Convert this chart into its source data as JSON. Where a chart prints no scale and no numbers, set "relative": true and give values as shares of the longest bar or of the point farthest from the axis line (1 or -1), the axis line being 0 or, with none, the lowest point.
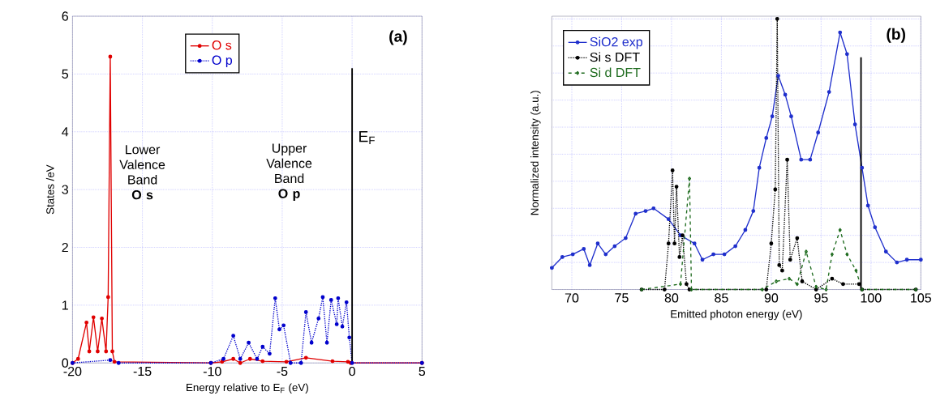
{
  "chart_data": [
    {
      "type": "line",
      "title": "(a)",
      "xlabel": "Energy relative to E$_{F}$ (eV)",
      "ylabel": "States /eV",
      "xlim": [
        -20,
        5
      ],
      "xticks": [
        -20,
        -15,
        -10,
        -5,
        0,
        5
      ],
      "ylim": [
        0,
        6
      ],
      "yticks": [
        0,
        1,
        2,
        3,
        4,
        5,
        6
      ],
      "grid": true,
      "legend": "top",
      "series": [
        {
          "name": "O s",
          "color": "#e00000",
          "marker": "circle",
          "line_style": "solid",
          "x": [
            -20,
            -19.6,
            -19.0,
            -18.8,
            -18.5,
            -18.2,
            -17.9,
            -17.6,
            -17.45,
            -17.3,
            -17.15,
            -17.0,
            -10.1,
            -9.3,
            -8.5,
            -8.0,
            -7.3,
            -6.4,
            -4.7,
            -3.3,
            -1.4,
            -0.3,
            -0.1,
            5.0
          ],
          "values": [
            0,
            0.07,
            0.7,
            0.2,
            0.79,
            0.2,
            0.77,
            0.2,
            1.14,
            5.3,
            0.2,
            0.02,
            0,
            0.02,
            0.07,
            0,
            0.07,
            0.03,
            0.02,
            0.09,
            0.03,
            0.02,
            0,
            0
          ]
        },
        {
          "name": "O p",
          "color": "#0000cc",
          "marker": "circle",
          "line_style": "dotted",
          "x": [
            -20,
            -17.3,
            -16.7,
            -10.1,
            -9.2,
            -8.5,
            -8.0,
            -7.4,
            -6.8,
            -6.4,
            -5.9,
            -5.5,
            -5.2,
            -4.9,
            -4.4,
            -3.65,
            -3.3,
            -2.9,
            -2.4,
            -2.1,
            -1.8,
            -1.5,
            -1.1,
            -1.0,
            -0.7,
            -0.4,
            -0.2,
            0.0,
            5.0
          ],
          "values": [
            0,
            0.05,
            0,
            0,
            0.07,
            0.47,
            0.07,
            0.35,
            0.07,
            0.28,
            0.16,
            1.12,
            0.58,
            0.65,
            0,
            0,
            0.88,
            0.35,
            0.77,
            1.14,
            0.35,
            1.09,
            0.67,
            1.12,
            0.63,
            1.05,
            0.44,
            0,
            0
          ]
        }
      ],
      "ref_lines": [
        {
          "axis": "x",
          "value": 0,
          "label": "E$_{F}$",
          "color": "#000000"
        }
      ],
      "annotations": [
        "Lower Valence Band **O s**",
        "Upper Valence Band **O p**"
      ]
    },
    {
      "type": "line",
      "title": "(b)",
      "xlabel": "Emitted photon energy (eV)",
      "ylabel": "Normalized intensity (a.u.)",
      "xlim": [
        68,
        105
      ],
      "xticks": [
        70,
        75,
        80,
        85,
        90,
        95,
        100,
        105
      ],
      "relative": true,
      "grid": true,
      "legend": "top left",
      "series": [
        {
          "name": "SiO2 exp",
          "color": "#1f2fcc",
          "marker": "circle",
          "line_style": "solid",
          "x": [
            68.0,
            69.05,
            70.1,
            71.2,
            71.8,
            72.6,
            73.4,
            74.3,
            75.4,
            76.4,
            77.4,
            78.2,
            79.7,
            80.9,
            82.3,
            83.1,
            84.2,
            85.3,
            86.4,
            87.4,
            88.2,
            88.8,
            89.5,
            90.1,
            90.7,
            91.4,
            92.0,
            93.0,
            93.9,
            94.7,
            95.8,
            96.9,
            97.6,
            98.4,
            99.1,
            99.7,
            100.4,
            101.5,
            102.6,
            103.6,
            105.0
          ],
          "values": [
            0.08,
            0.12,
            0.13,
            0.15,
            0.09,
            0.17,
            0.13,
            0.16,
            0.19,
            0.28,
            0.29,
            0.3,
            0.26,
            0.2,
            0.17,
            0.11,
            0.13,
            0.13,
            0.16,
            0.22,
            0.29,
            0.45,
            0.56,
            0.64,
            0.79,
            0.72,
            0.64,
            0.48,
            0.48,
            0.58,
            0.73,
            0.95,
            0.87,
            0.61,
            0.45,
            0.31,
            0.23,
            0.14,
            0.1,
            0.11,
            0.11
          ]
        },
        {
          "name": "Si s DFT",
          "color": "#000000",
          "marker": "circle",
          "line_style": "dotted",
          "x": [
            77.0,
            79.3,
            79.7,
            80.1,
            80.3,
            80.5,
            80.8,
            81.1,
            81.5,
            81.8,
            89.5,
            90.0,
            90.4,
            90.6,
            90.8,
            91.1,
            91.6,
            91.9,
            92.6,
            93.1,
            94.5,
            96.1,
            97.2,
            98.8,
            99.1,
            104.5
          ],
          "values": [
            0,
            0,
            0.17,
            0.44,
            0.17,
            0.38,
            0.12,
            0.2,
            0.02,
            0,
            0,
            0.17,
            0.37,
            1.0,
            0.09,
            0.07,
            0.48,
            0.11,
            0.19,
            0.03,
            0,
            0.04,
            0.02,
            0.02,
            0,
            0
          ]
        },
        {
          "name": "Si d DFT",
          "color": "#1e6b1e",
          "marker": "diamond",
          "line_style": "dashed",
          "x": [
            77.0,
            80.9,
            81.8,
            82.0,
            89.1,
            90.5,
            91.8,
            92.6,
            93.5,
            94.5,
            95.5,
            96.1,
            96.9,
            97.6,
            98.5,
            99.1,
            104.5
          ],
          "values": [
            0,
            0.02,
            0.41,
            0,
            0,
            0.03,
            0.04,
            0.02,
            0.14,
            0.01,
            0,
            0.13,
            0.22,
            0.13,
            0.07,
            0,
            0
          ]
        }
      ],
      "ref_lines": [
        {
          "axis": "x",
          "value": 99.0,
          "label": null,
          "color": "#000000"
        }
      ]
    }
  ]
}
